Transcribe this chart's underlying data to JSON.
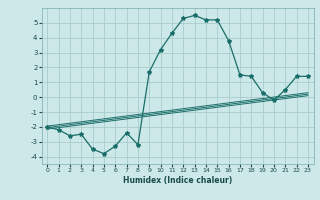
{
  "xlabel": "Humidex (Indice chaleur)",
  "bg_color": "#cce8e8",
  "grid_color": "#aacccc",
  "line_color": "#1a6e6a",
  "xlim": [
    -0.5,
    23.5
  ],
  "ylim": [
    -4.5,
    6.0
  ],
  "xticks": [
    0,
    1,
    2,
    3,
    4,
    5,
    6,
    7,
    8,
    9,
    10,
    11,
    12,
    13,
    14,
    15,
    16,
    17,
    18,
    19,
    20,
    21,
    22,
    23
  ],
  "yticks": [
    -4,
    -3,
    -2,
    -1,
    0,
    1,
    2,
    3,
    4,
    5
  ],
  "main_x": [
    0,
    1,
    2,
    3,
    4,
    5,
    6,
    7,
    8,
    9,
    10,
    11,
    12,
    13,
    14,
    15,
    16,
    17,
    18,
    19,
    20,
    21,
    22,
    23
  ],
  "main_y": [
    -2.0,
    -2.2,
    -2.6,
    -2.5,
    -3.5,
    -3.8,
    -3.3,
    -2.4,
    -3.2,
    1.7,
    3.2,
    4.3,
    5.3,
    5.5,
    5.2,
    5.2,
    3.8,
    1.5,
    1.4,
    0.3,
    -0.2,
    0.5,
    1.4,
    1.4
  ],
  "linear_lines": [
    {
      "x": [
        0,
        23
      ],
      "y": [
        -2.15,
        0.1
      ]
    },
    {
      "x": [
        0,
        23
      ],
      "y": [
        -2.05,
        0.2
      ]
    },
    {
      "x": [
        0,
        23
      ],
      "y": [
        -1.95,
        0.3
      ]
    }
  ]
}
